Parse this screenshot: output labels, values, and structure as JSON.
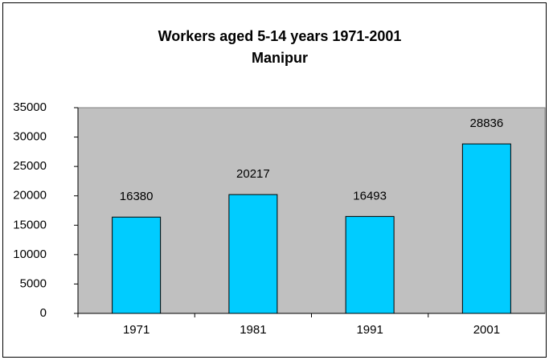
{
  "chart_data": {
    "type": "bar",
    "title": "Workers aged 5-14 years 1971-2001",
    "subtitle": "Manipur",
    "categories": [
      "1971",
      "1981",
      "1991",
      "2001"
    ],
    "values": [
      16380,
      20217,
      16493,
      28836
    ],
    "color": "#00ccff",
    "ylim": [
      0,
      35000
    ],
    "yticks": [
      0,
      5000,
      10000,
      15000,
      20000,
      25000,
      30000,
      35000
    ],
    "grid": false
  }
}
